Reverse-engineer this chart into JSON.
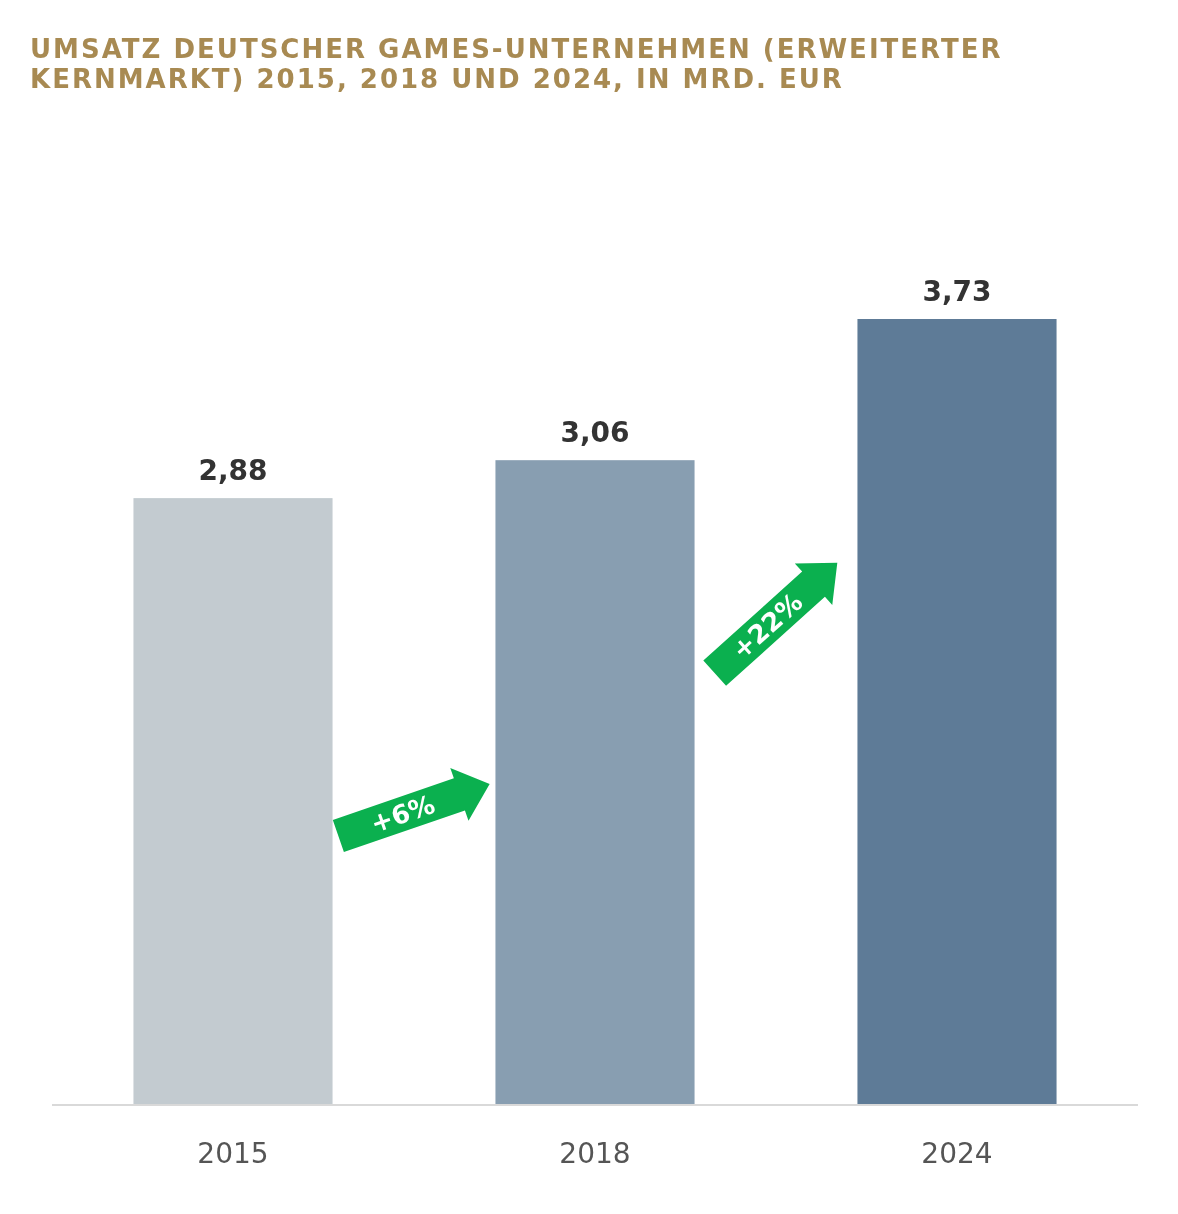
{
  "chart_data": {
    "type": "bar",
    "title": "UMSATZ DEUTSCHER GAMES-UNTERNEHMEN (ERWEITERTER KERNMARKT) 2015, 2018 UND 2024, IN MRD. EUR",
    "categories": [
      "2015",
      "2018",
      "2024"
    ],
    "values": [
      2.88,
      3.06,
      3.73
    ],
    "colors": [
      "#c3cbd0",
      "#889eb1",
      "#5e7b97"
    ],
    "value_labels": [
      "2,88",
      "3,06",
      "3,73"
    ],
    "annotations": [
      "+6%",
      "+22%"
    ]
  }
}
